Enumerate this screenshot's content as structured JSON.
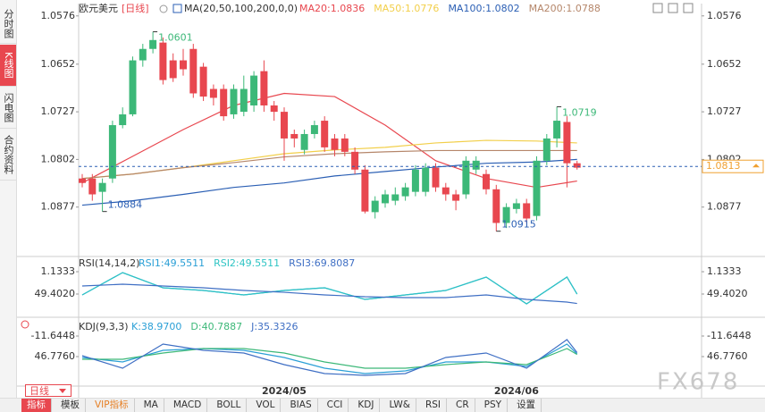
{
  "sidebar_tabs": [
    "分时图",
    "K线图",
    "闪电图",
    "合约资料"
  ],
  "header": {
    "symbol": "欧元美元",
    "period": "[日线]",
    "ma_params": "MA(20,50,100,200,0,0)"
  },
  "period_selector": "日线",
  "toolbar": [
    "指标",
    "模板",
    "VIP指标",
    "MA",
    "MACD",
    "BOLL",
    "VOL",
    "BIAS",
    "CCI",
    "KDJ",
    "LW&",
    "RSI",
    "CR",
    "PSY",
    "设置"
  ],
  "watermark": "FX678",
  "chart_data": [
    {
      "type": "candlestick",
      "invert_y": true,
      "ylim": [
        1.0558,
        1.0952
      ],
      "yticks": [
        1.0576,
        1.0652,
        1.0727,
        1.0802,
        1.0877
      ],
      "up_color": "#e8474f",
      "down_color": "#3cb878",
      "categories": [
        null,
        null,
        null,
        null,
        null,
        null,
        null,
        null,
        null,
        null,
        null,
        null,
        null,
        null,
        null,
        null,
        null,
        null,
        null,
        null,
        "2024/05",
        null,
        null,
        null,
        null,
        null,
        null,
        null,
        null,
        null,
        null,
        null,
        null,
        null,
        null,
        null,
        null,
        null,
        null,
        null,
        null,
        null,
        null,
        "2024/06",
        null,
        null,
        null,
        null,
        null,
        null
      ],
      "open": [
        1.0832,
        1.0832,
        1.0853,
        1.0832,
        1.0748,
        1.0731,
        1.0646,
        1.0628,
        1.0618,
        1.0646,
        1.0646,
        1.0628,
        1.0656,
        1.0691,
        1.0691,
        1.0731,
        1.0727,
        1.0717,
        1.0663,
        1.0717,
        1.0727,
        1.0762,
        1.0787,
        1.0762,
        1.0741,
        1.0769,
        1.0769,
        1.079,
        1.0818,
        1.0885,
        1.0871,
        1.0867,
        1.086,
        1.0853,
        1.0853,
        1.0815,
        1.0846,
        1.0857,
        1.0857,
        1.0818,
        1.0825,
        1.0849,
        1.0902,
        1.088,
        1.0871,
        1.0891,
        1.0804,
        1.0769,
        1.0743,
        1.0808
      ],
      "close": [
        1.0839,
        1.0857,
        1.0839,
        1.0748,
        1.0731,
        1.0646,
        1.0628,
        1.0614,
        1.0677,
        1.0674,
        1.066,
        1.0698,
        1.0703,
        1.0705,
        1.0734,
        1.0691,
        1.0691,
        1.067,
        1.0717,
        1.0727,
        1.0769,
        1.0769,
        1.0762,
        1.0748,
        1.0783,
        1.0787,
        1.079,
        1.0818,
        1.0884,
        1.0867,
        1.0857,
        1.0857,
        1.0846,
        1.0818,
        1.0815,
        1.0846,
        1.0857,
        1.0867,
        1.0804,
        1.0804,
        1.0849,
        1.0902,
        1.0877,
        1.0871,
        1.0895,
        1.0804,
        1.0769,
        1.0741,
        1.0808,
        1.0815
      ],
      "high": [
        1.0846,
        1.0867,
        1.0884,
        1.0839,
        1.0753,
        1.0734,
        1.0656,
        1.0635,
        1.0684,
        1.068,
        1.067,
        1.0705,
        1.071,
        1.0717,
        1.0741,
        1.0738,
        1.0734,
        1.0727,
        1.0727,
        1.0741,
        1.0804,
        1.0783,
        1.0794,
        1.0769,
        1.079,
        1.0797,
        1.0797,
        1.0825,
        1.0887,
        1.0895,
        1.0878,
        1.0874,
        1.0867,
        1.086,
        1.086,
        1.0853,
        1.0867,
        1.0882,
        1.0864,
        1.0825,
        1.0857,
        1.0915,
        1.091,
        1.0887,
        1.0902,
        1.0898,
        1.0811,
        1.0783,
        1.0846,
        1.0818
      ],
      "low": [
        1.0825,
        1.0825,
        1.0832,
        1.0741,
        1.072,
        1.064,
        1.062,
        1.0601,
        1.061,
        1.0635,
        1.0628,
        1.062,
        1.065,
        1.0684,
        1.0684,
        1.0684,
        1.067,
        1.0663,
        1.0646,
        1.071,
        1.072,
        1.0755,
        1.0755,
        1.0741,
        1.0734,
        1.0762,
        1.0762,
        1.0783,
        1.0811,
        1.086,
        1.085,
        1.0846,
        1.0839,
        1.0811,
        1.0808,
        1.0808,
        1.0839,
        1.085,
        1.0797,
        1.0797,
        1.0818,
        1.0842,
        1.0871,
        1.0864,
        1.0864,
        1.0797,
        1.0762,
        1.0719,
        1.0734,
        1.0804
      ],
      "annotations": [
        {
          "value": 1.0601,
          "color": "#3cb878"
        },
        {
          "value": 1.0884,
          "color": "#2b5fb4"
        },
        {
          "value": 1.0915,
          "color": "#2b5fb4"
        },
        {
          "value": 1.0719,
          "color": "#3cb878"
        }
      ],
      "last_price": 1.0813,
      "series": [
        {
          "name": "MA20:1.0836",
          "color": "#e8474f",
          "x": [
            0,
            5,
            10,
            15,
            20,
            25,
            30,
            35,
            40,
            45,
            49
          ],
          "values": [
            1.0839,
            1.0797,
            1.0755,
            1.0717,
            1.0698,
            1.0703,
            1.0748,
            1.0804,
            1.0832,
            1.0846,
            1.0836
          ]
        },
        {
          "name": "MA50:1.0776",
          "color": "#f2cf4a",
          "x": [
            0,
            5,
            10,
            15,
            20,
            25,
            30,
            35,
            40,
            45,
            49
          ],
          "values": [
            1.0832,
            1.0825,
            1.0815,
            1.0804,
            1.0793,
            1.0787,
            1.0783,
            1.0776,
            1.0772,
            1.0773,
            1.0776
          ]
        },
        {
          "name": "MA100:1.0802",
          "color": "#2b5fb4",
          "x": [
            0,
            5,
            10,
            15,
            20,
            25,
            30,
            35,
            40,
            45,
            49
          ],
          "values": [
            1.0874,
            1.0867,
            1.0857,
            1.0846,
            1.0839,
            1.0828,
            1.0821,
            1.0814,
            1.0808,
            1.0806,
            1.0802
          ]
        },
        {
          "name": "MA200:1.0788",
          "color": "#b5866a",
          "x": [
            0,
            5,
            10,
            15,
            20,
            25,
            30,
            35,
            40,
            45,
            49
          ],
          "values": [
            1.0832,
            1.0825,
            1.0815,
            1.0807,
            1.0798,
            1.0793,
            1.079,
            1.0788,
            1.0788,
            1.0788,
            1.0788
          ]
        }
      ]
    },
    {
      "type": "line",
      "title": "RSI(14,14,2)",
      "invert_y": true,
      "ylim": [
        -29.8,
        93.8
      ],
      "yticks": [
        1.1333,
        {
          "value": 49.402,
          "label": "49.4020"
        }
      ],
      "x": [
        0,
        4,
        8,
        12,
        16,
        20,
        24,
        28,
        32,
        36,
        40,
        44,
        48,
        49
      ],
      "series": [
        {
          "name": "RSI1:49.5511",
          "color": "#2a9fd6",
          "values": [
            51.3,
            3.1,
            35.9,
            41.7,
            51.3,
            41.7,
            35.9,
            61.0,
            51.3,
            41.7,
            12.7,
            70.6,
            12.7,
            49.5511
          ]
        },
        {
          "name": "RSI2:49.5511",
          "color": "#2ec4c4",
          "values": [
            51.3,
            3.1,
            35.9,
            41.7,
            51.3,
            41.7,
            35.9,
            61.0,
            51.3,
            41.7,
            12.7,
            70.6,
            12.7,
            49.5511
          ]
        },
        {
          "name": "RSI3:69.8087",
          "color": "#3f6fc4",
          "values": [
            32.0,
            28.2,
            32.0,
            35.9,
            41.7,
            45.6,
            51.3,
            55.2,
            57.1,
            57.1,
            51.3,
            61.0,
            66.8,
            69.8087
          ]
        }
      ]
    },
    {
      "type": "line",
      "title": "KDJ(9,3,3)",
      "invert_y": true,
      "ylim": [
        -57.4,
        130.6
      ],
      "yticks": [
        -11.6448,
        {
          "value": 46.776,
          "label": "46.7760"
        }
      ],
      "x": [
        0,
        4,
        8,
        12,
        16,
        20,
        24,
        28,
        32,
        36,
        40,
        44,
        48,
        49
      ],
      "series": [
        {
          "name": "K:38.9700",
          "color": "#2a9fd6",
          "values": [
            49.3,
            62.0,
            29.0,
            23.9,
            29.0,
            49.3,
            79.8,
            95.0,
            87.4,
            62.0,
            62.0,
            74.7,
            11.2,
            38.97
          ]
        },
        {
          "name": "D:40.7887",
          "color": "#3cb878",
          "values": [
            54.4,
            54.4,
            36.6,
            23.9,
            23.9,
            36.6,
            62.0,
            79.8,
            79.8,
            69.6,
            62.0,
            69.6,
            23.9,
            40.7887
          ]
        },
        {
          "name": "J:35.3326",
          "color": "#3f6fc4",
          "values": [
            44.2,
            79.8,
            11.2,
            29.0,
            36.6,
            69.6,
            95.0,
            100.1,
            95.0,
            49.3,
            36.6,
            79.8,
            -1.5,
            35.3326
          ]
        }
      ]
    }
  ]
}
